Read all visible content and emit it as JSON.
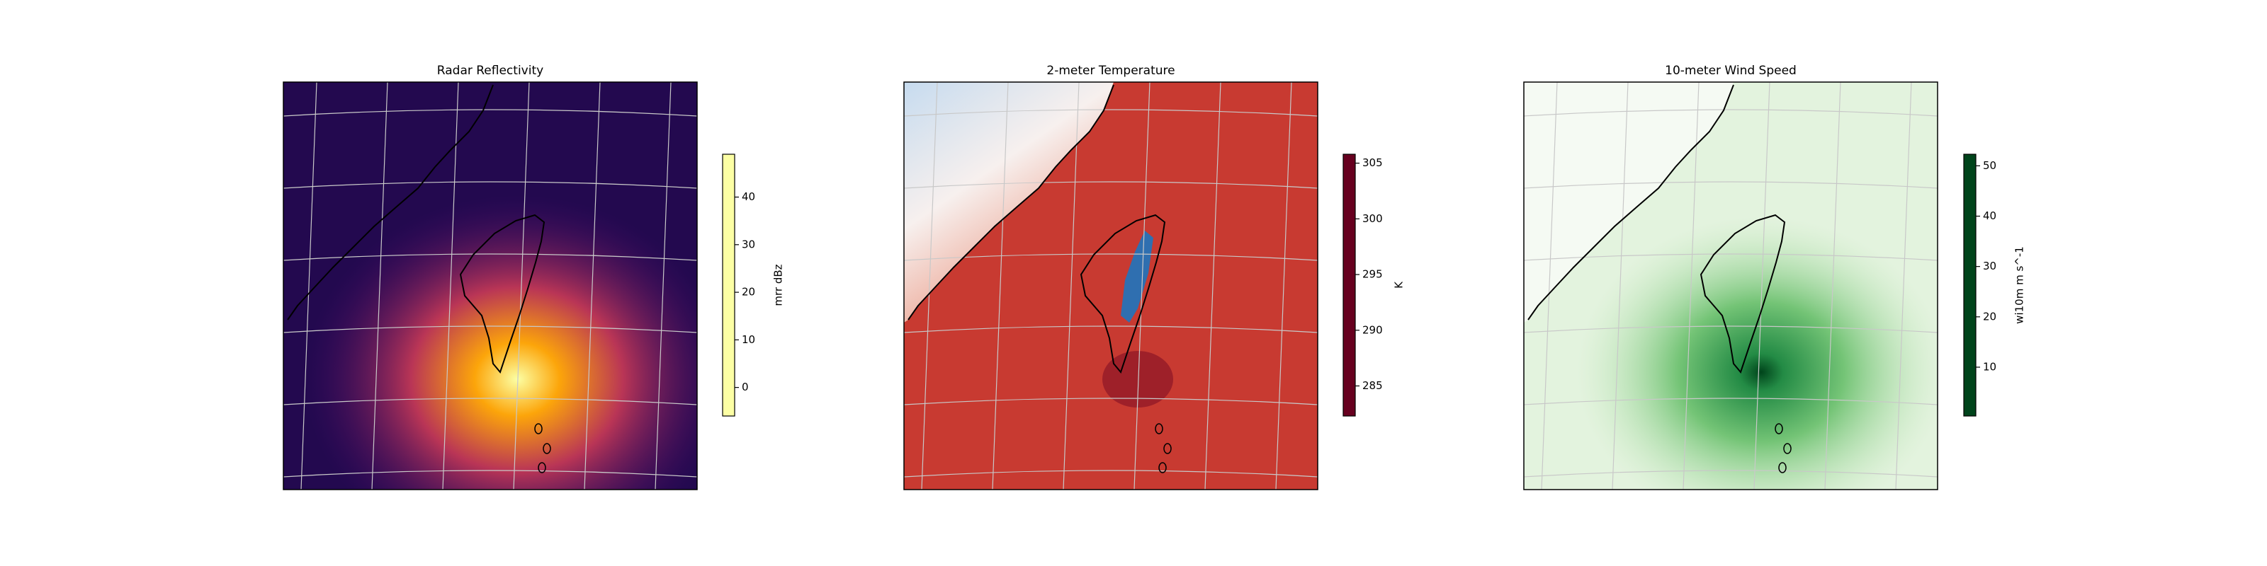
{
  "chart_data": [
    {
      "type": "map",
      "title": "Radar Reflectivity",
      "ylabel": "mrr dBz",
      "ylim": [
        -6,
        49
      ],
      "yticks": [
        0,
        10,
        20,
        30,
        40
      ],
      "colormap": [
        "#000004",
        "#420a68",
        "#932667",
        "#dd513a",
        "#fca50a",
        "#fcffa4"
      ]
    },
    {
      "type": "map",
      "title": "2-meter Temperature",
      "ylabel": "K",
      "ylim": [
        282.3,
        305.8
      ],
      "yticks": [
        285,
        290,
        295,
        300,
        305
      ],
      "colormap": [
        "#053061",
        "#4393c3",
        "#f7f7f7",
        "#f4a582",
        "#b2182b",
        "#67001f"
      ]
    },
    {
      "type": "map",
      "title": "10-meter Wind Speed",
      "ylabel": "wi10m m s^-1",
      "ylim": [
        0.3,
        52.3
      ],
      "yticks": [
        10,
        20,
        30,
        40,
        50
      ],
      "colormap": [
        "#f7fcf5",
        "#c7e9c0",
        "#74c476",
        "#238b45",
        "#00441b"
      ]
    }
  ]
}
